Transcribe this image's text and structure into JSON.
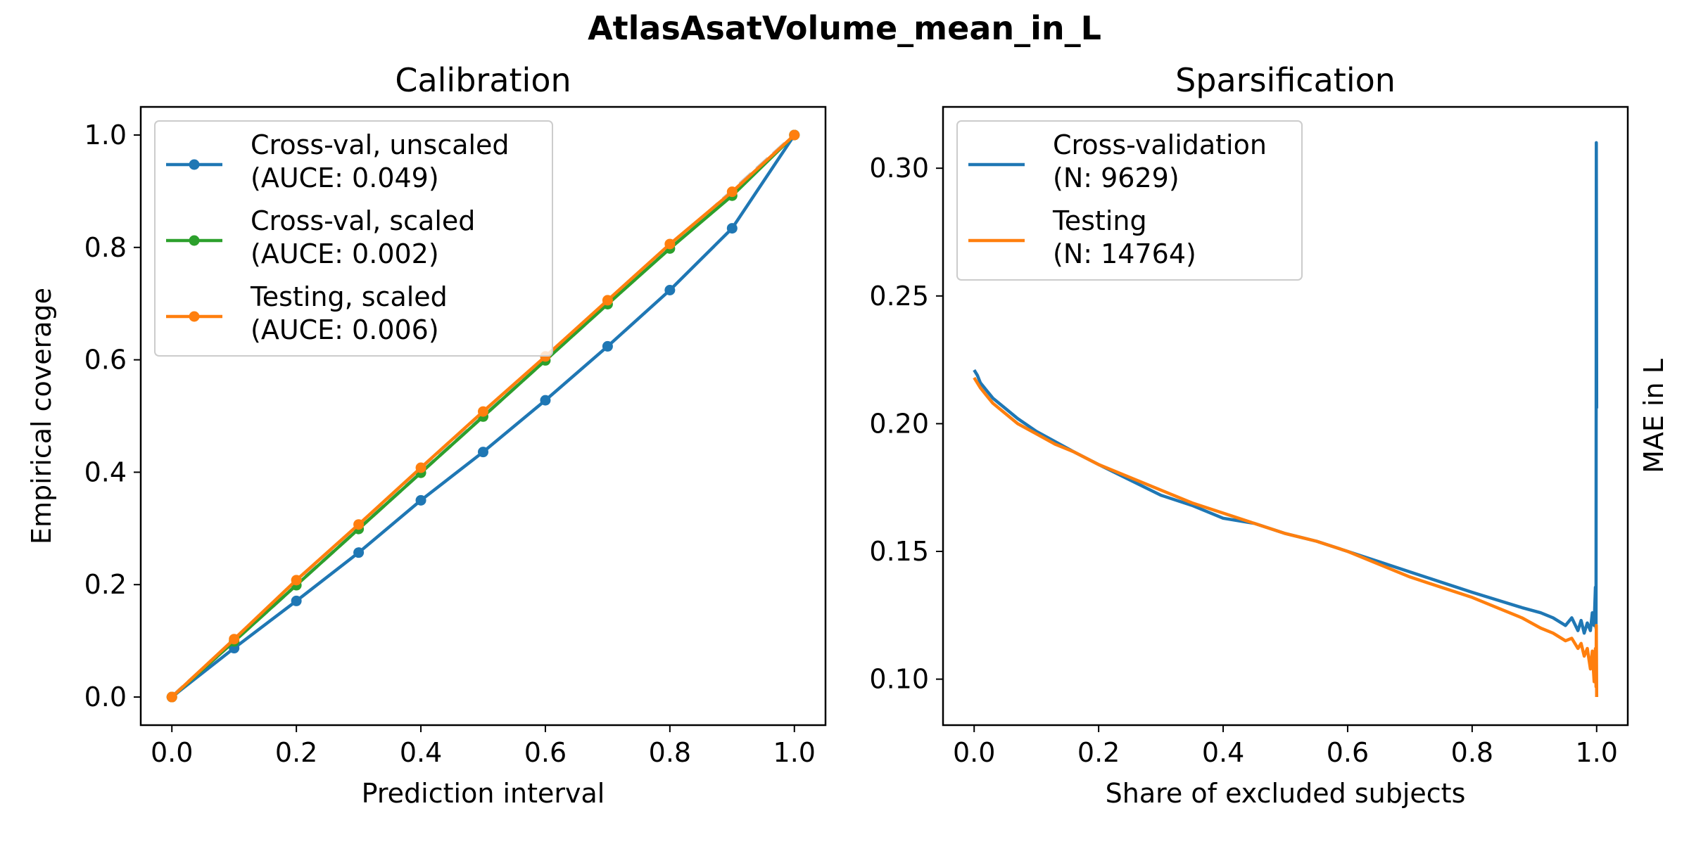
{
  "suptitle": "AtlasAsatVolume_mean_in_L",
  "chart_data": [
    {
      "type": "line",
      "title": "Calibration",
      "xlabel": "Prediction interval",
      "ylabel": "Empirical coverage",
      "xlim": [
        -0.05,
        1.05
      ],
      "ylim": [
        -0.05,
        1.05
      ],
      "xticks": [
        0.0,
        0.2,
        0.4,
        0.6,
        0.8,
        1.0
      ],
      "yticks": [
        0.0,
        0.2,
        0.4,
        0.6,
        0.8,
        1.0
      ],
      "xtick_labels": [
        "0.0",
        "0.2",
        "0.4",
        "0.6",
        "0.8",
        "1.0"
      ],
      "ytick_labels": [
        "0.0",
        "0.2",
        "0.4",
        "0.6",
        "0.8",
        "1.0"
      ],
      "legend_position": "top-left",
      "grid": false,
      "reference_line": {
        "x": [
          0,
          1
        ],
        "y": [
          0,
          1
        ],
        "color": "#c8c8c8",
        "style": "dashed"
      },
      "series": [
        {
          "name": "Cross-val, unscaled",
          "legend_note": "(AUCE: 0.049)",
          "color": "#1f77b4",
          "marker": "circle",
          "x": [
            0.0,
            0.1,
            0.2,
            0.3,
            0.4,
            0.5,
            0.6,
            0.7,
            0.8,
            0.9,
            1.0
          ],
          "y": [
            0.0,
            0.087,
            0.171,
            0.257,
            0.35,
            0.436,
            0.528,
            0.624,
            0.724,
            0.834,
            1.0
          ]
        },
        {
          "name": "Cross-val, scaled",
          "legend_note": "(AUCE: 0.002)",
          "color": "#2ca02c",
          "marker": "circle",
          "x": [
            0.0,
            0.1,
            0.2,
            0.3,
            0.4,
            0.5,
            0.6,
            0.7,
            0.8,
            0.9,
            1.0
          ],
          "y": [
            0.0,
            0.099,
            0.199,
            0.299,
            0.399,
            0.499,
            0.599,
            0.699,
            0.798,
            0.892,
            1.0
          ]
        },
        {
          "name": "Testing, scaled",
          "legend_note": "(AUCE: 0.006)",
          "color": "#ff7f0e",
          "marker": "circle",
          "x": [
            0.0,
            0.1,
            0.2,
            0.3,
            0.4,
            0.5,
            0.6,
            0.7,
            0.8,
            0.9,
            1.0
          ],
          "y": [
            0.0,
            0.103,
            0.208,
            0.307,
            0.408,
            0.508,
            0.606,
            0.706,
            0.806,
            0.899,
            1.0
          ]
        }
      ]
    },
    {
      "type": "line",
      "title": "Sparsification",
      "xlabel": "Share of excluded subjects",
      "ylabel": "MAE in L",
      "ylabel_side": "right",
      "xlim": [
        -0.05,
        1.05
      ],
      "ylim": [
        0.082,
        0.324
      ],
      "xticks": [
        0.0,
        0.2,
        0.4,
        0.6,
        0.8,
        1.0
      ],
      "yticks": [
        0.1,
        0.15,
        0.2,
        0.25,
        0.3
      ],
      "xtick_labels": [
        "0.0",
        "0.2",
        "0.4",
        "0.6",
        "0.8",
        "1.0"
      ],
      "ytick_labels": [
        "0.10",
        "0.15",
        "0.20",
        "0.25",
        "0.30"
      ],
      "legend_position": "top-left",
      "grid": false,
      "series": [
        {
          "name": "Cross-validation",
          "legend_note": "(N: 9629)",
          "color": "#1f77b4",
          "x": [
            0.0,
            0.005,
            0.01,
            0.02,
            0.03,
            0.05,
            0.07,
            0.1,
            0.13,
            0.16,
            0.2,
            0.25,
            0.3,
            0.35,
            0.4,
            0.45,
            0.5,
            0.55,
            0.6,
            0.65,
            0.7,
            0.75,
            0.8,
            0.84,
            0.88,
            0.91,
            0.93,
            0.95,
            0.96,
            0.97,
            0.975,
            0.98,
            0.985,
            0.99,
            0.993,
            0.996,
            0.998,
            0.999,
            0.9995,
            1.0
          ],
          "y": [
            0.221,
            0.219,
            0.216,
            0.213,
            0.21,
            0.206,
            0.202,
            0.197,
            0.193,
            0.189,
            0.184,
            0.178,
            0.172,
            0.168,
            0.163,
            0.161,
            0.157,
            0.154,
            0.15,
            0.146,
            0.142,
            0.138,
            0.134,
            0.131,
            0.128,
            0.126,
            0.124,
            0.121,
            0.124,
            0.119,
            0.123,
            0.118,
            0.122,
            0.119,
            0.126,
            0.121,
            0.136,
            0.12,
            0.31,
            0.206
          ]
        },
        {
          "name": "Testing",
          "legend_note": "(N: 14764)",
          "color": "#ff7f0e",
          "x": [
            0.0,
            0.005,
            0.01,
            0.02,
            0.03,
            0.05,
            0.07,
            0.1,
            0.13,
            0.16,
            0.2,
            0.25,
            0.3,
            0.35,
            0.4,
            0.45,
            0.5,
            0.55,
            0.6,
            0.65,
            0.7,
            0.75,
            0.8,
            0.84,
            0.88,
            0.91,
            0.93,
            0.95,
            0.96,
            0.97,
            0.975,
            0.98,
            0.985,
            0.99,
            0.993,
            0.996,
            0.998,
            0.999,
            0.9995,
            1.0
          ],
          "y": [
            0.218,
            0.216,
            0.214,
            0.211,
            0.208,
            0.204,
            0.2,
            0.196,
            0.192,
            0.189,
            0.184,
            0.179,
            0.174,
            0.169,
            0.165,
            0.161,
            0.157,
            0.154,
            0.15,
            0.145,
            0.14,
            0.136,
            0.132,
            0.128,
            0.124,
            0.12,
            0.118,
            0.115,
            0.116,
            0.112,
            0.114,
            0.109,
            0.112,
            0.104,
            0.111,
            0.099,
            0.112,
            0.097,
            0.121,
            0.093
          ]
        }
      ]
    }
  ]
}
